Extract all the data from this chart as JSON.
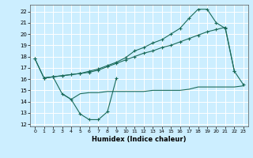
{
  "title": "",
  "xlabel": "Humidex (Indice chaleur)",
  "bg_color": "#cceeff",
  "grid_color": "#ffffff",
  "line_color": "#1a6b5a",
  "xlim": [
    -0.5,
    23.5
  ],
  "ylim": [
    11.8,
    22.6
  ],
  "yticks": [
    12,
    13,
    14,
    15,
    16,
    17,
    18,
    19,
    20,
    21,
    22
  ],
  "xticks": [
    0,
    1,
    2,
    3,
    4,
    5,
    6,
    7,
    8,
    9,
    10,
    11,
    12,
    13,
    14,
    15,
    16,
    17,
    18,
    19,
    20,
    21,
    22,
    23
  ],
  "series": [
    {
      "x": [
        0,
        1,
        2,
        3,
        4,
        5,
        6,
        7,
        8,
        9
      ],
      "y": [
        17.8,
        16.1,
        16.2,
        14.7,
        14.2,
        12.9,
        12.4,
        12.4,
        13.1,
        16.1
      ],
      "marker": "+"
    },
    {
      "x": [
        3,
        4,
        5,
        6,
        7,
        8,
        9,
        10,
        11,
        12,
        13,
        14,
        15,
        16,
        17,
        18,
        19,
        20,
        21,
        22,
        23
      ],
      "y": [
        14.7,
        14.2,
        14.7,
        14.8,
        14.8,
        14.9,
        14.9,
        14.9,
        14.9,
        14.9,
        15.0,
        15.0,
        15.0,
        15.0,
        15.1,
        15.3,
        15.3,
        15.3,
        15.3,
        15.3,
        15.4
      ],
      "marker": null
    },
    {
      "x": [
        0,
        1,
        2,
        3,
        4,
        5,
        6,
        7,
        8,
        9,
        10,
        11,
        12,
        13,
        14,
        15,
        16,
        17,
        18,
        19,
        20,
        21,
        22
      ],
      "y": [
        17.8,
        16.1,
        16.2,
        16.3,
        16.4,
        16.5,
        16.6,
        16.8,
        17.1,
        17.4,
        17.7,
        18.0,
        18.3,
        18.5,
        18.8,
        19.0,
        19.3,
        19.6,
        19.9,
        20.2,
        20.4,
        20.6,
        16.7
      ],
      "marker": "+"
    },
    {
      "x": [
        1,
        2,
        3,
        4,
        5,
        6,
        7,
        8,
        9,
        10,
        11,
        12,
        13,
        14,
        15,
        16,
        17,
        18,
        19,
        20,
        21,
        22,
        23
      ],
      "y": [
        16.1,
        16.2,
        16.3,
        16.4,
        16.5,
        16.7,
        16.9,
        17.2,
        17.5,
        17.9,
        18.5,
        18.8,
        19.2,
        19.5,
        20.0,
        20.5,
        21.4,
        22.2,
        22.2,
        21.0,
        20.5,
        16.7,
        15.5
      ],
      "marker": "+"
    }
  ]
}
